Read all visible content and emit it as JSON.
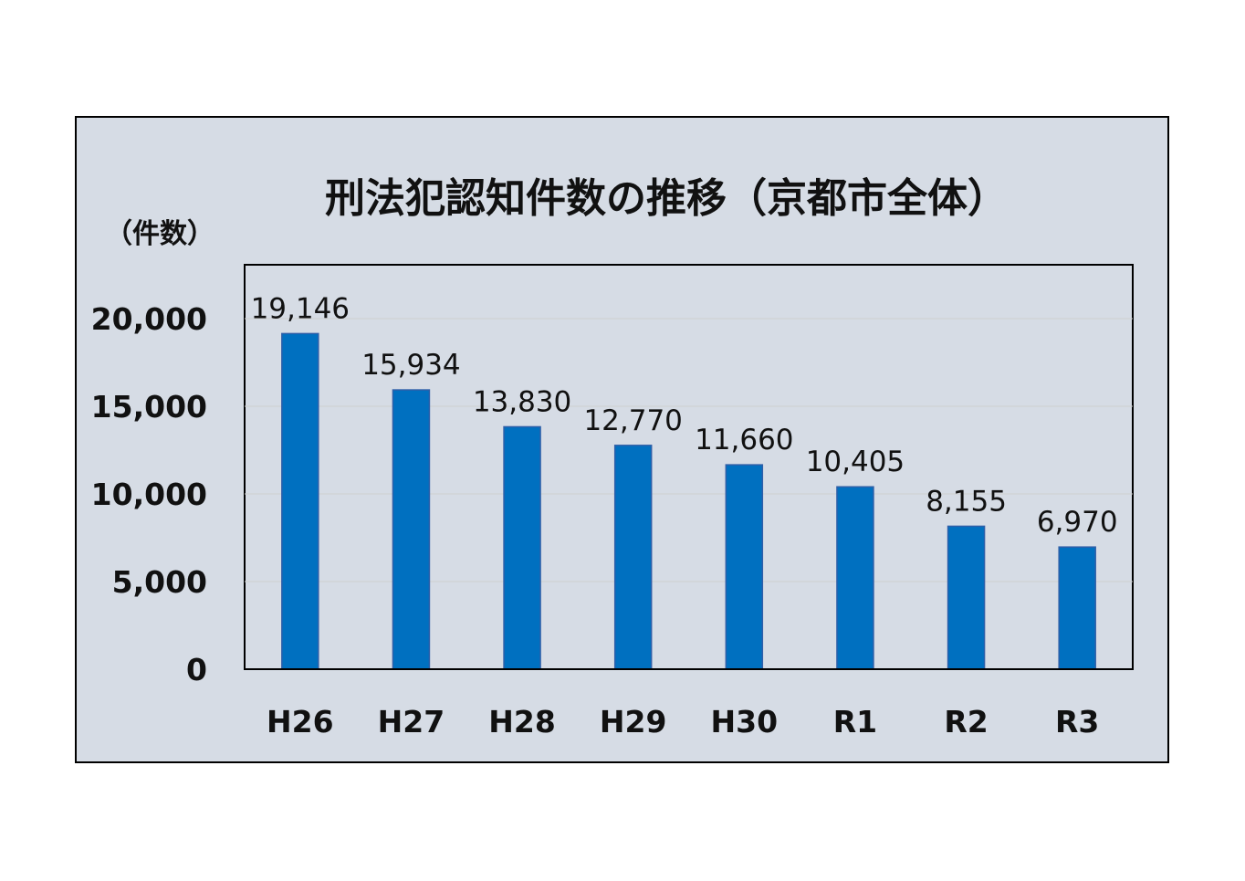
{
  "chart_data": {
    "type": "bar",
    "title": "刑法犯認知件数の推移（京都市全体）",
    "ylabel": "（件数）",
    "categories": [
      "H26",
      "H27",
      "H28",
      "H29",
      "H30",
      "R1",
      "R2",
      "R3"
    ],
    "values": [
      19146,
      15934,
      13830,
      12770,
      11660,
      10405,
      8155,
      6970
    ],
    "data_labels": [
      "19,146",
      "15,934",
      "13,830",
      "12,770",
      "11,660",
      "10,405",
      "8,155",
      "6,970"
    ],
    "yticks": [
      0,
      5000,
      10000,
      15000,
      20000
    ],
    "ytick_labels": [
      "0",
      "5,000",
      "10,000",
      "15,000",
      "20,000"
    ],
    "ylim": [
      0,
      20000
    ],
    "grid": true,
    "legend": "none",
    "colors": {
      "bar": "#0070C0",
      "bar_edge": "#2E5FA8",
      "panel_background": "#D6DCE5",
      "frame": "#000000",
      "gridline": "#CFCFCF"
    }
  }
}
